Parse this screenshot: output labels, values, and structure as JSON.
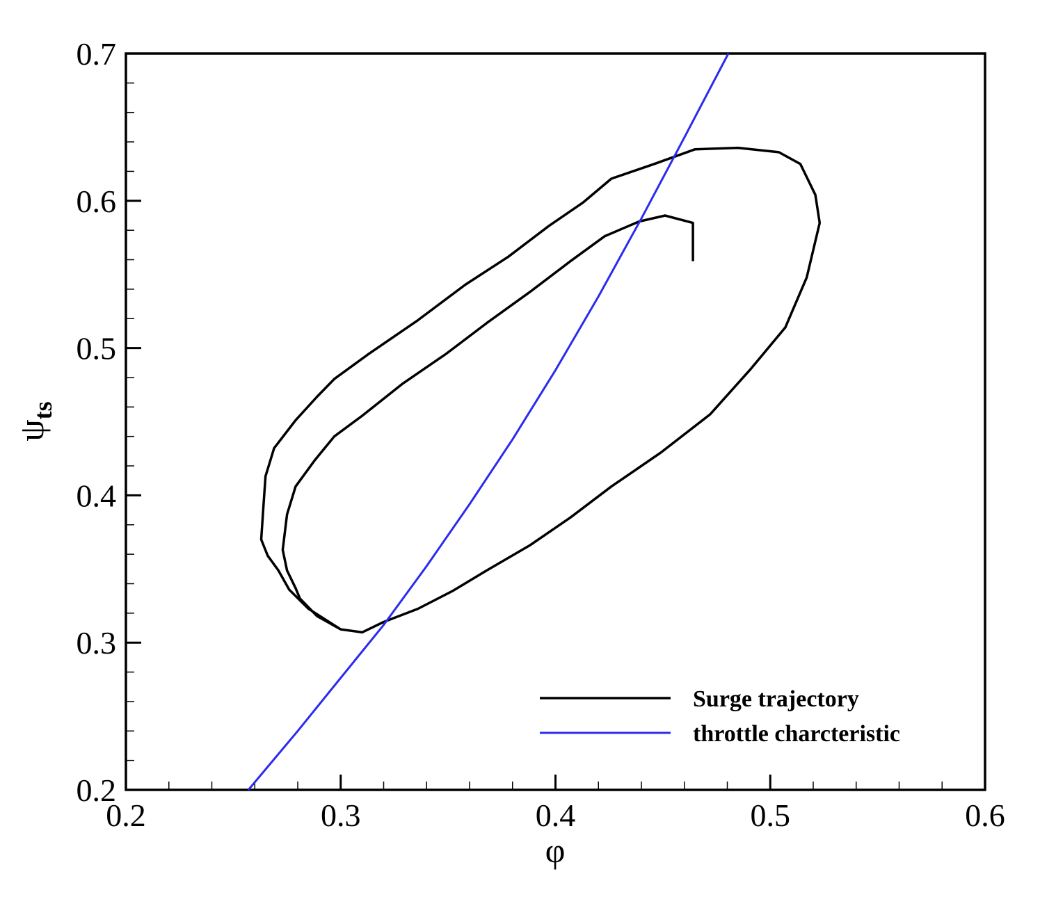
{
  "chart_data": {
    "type": "line",
    "x_label": "φ",
    "y_label": {
      "text": "ψ",
      "subscript": "ts"
    },
    "xlim": [
      0.2,
      0.6
    ],
    "ylim": [
      0.2,
      0.7
    ],
    "xticks": [
      0.2,
      0.3,
      0.4,
      0.5,
      0.6
    ],
    "yticks": [
      0.2,
      0.3,
      0.4,
      0.5,
      0.6,
      0.7
    ],
    "xminorticks": [
      0.22,
      0.24,
      0.26,
      0.28,
      0.32,
      0.34,
      0.36,
      0.38,
      0.42,
      0.44,
      0.46,
      0.48,
      0.52,
      0.54,
      0.56,
      0.58
    ],
    "yminorticks": [
      0.22,
      0.24,
      0.26,
      0.28,
      0.32,
      0.34,
      0.36,
      0.38,
      0.42,
      0.44,
      0.46,
      0.48,
      0.52,
      0.54,
      0.56,
      0.58,
      0.62,
      0.64,
      0.66,
      0.68
    ],
    "legend": "lower right",
    "series": [
      {
        "name": "Surge trajectory",
        "color": "#000000",
        "x": [
          0.464,
          0.464,
          0.451,
          0.439,
          0.423,
          0.407,
          0.388,
          0.368,
          0.349,
          0.329,
          0.31,
          0.297,
          0.288,
          0.279,
          0.275,
          0.273,
          0.275,
          0.279,
          0.281,
          0.289,
          0.3,
          0.31,
          0.32,
          0.336,
          0.352,
          0.368,
          0.388,
          0.407,
          0.426,
          0.449,
          0.472,
          0.491,
          0.507,
          0.517,
          0.523,
          0.521,
          0.514,
          0.504,
          0.485,
          0.465,
          0.446,
          0.426,
          0.413,
          0.397,
          0.378,
          0.358,
          0.336,
          0.313,
          0.297,
          0.289,
          0.279,
          0.269,
          0.265,
          0.264,
          0.263,
          0.266,
          0.271,
          0.276,
          0.285,
          0.3
        ],
        "values": [
          0.559,
          0.585,
          0.59,
          0.586,
          0.576,
          0.559,
          0.538,
          0.517,
          0.496,
          0.476,
          0.454,
          0.44,
          0.424,
          0.406,
          0.387,
          0.363,
          0.349,
          0.337,
          0.33,
          0.318,
          0.309,
          0.307,
          0.314,
          0.323,
          0.335,
          0.349,
          0.366,
          0.385,
          0.406,
          0.429,
          0.455,
          0.486,
          0.514,
          0.548,
          0.585,
          0.604,
          0.625,
          0.633,
          0.636,
          0.635,
          0.625,
          0.615,
          0.599,
          0.583,
          0.562,
          0.543,
          0.519,
          0.496,
          0.479,
          0.467,
          0.451,
          0.432,
          0.413,
          0.392,
          0.37,
          0.359,
          0.349,
          0.336,
          0.323,
          0.309
        ]
      },
      {
        "name": "throttle charcteristic",
        "color": "#2b2bef",
        "x": [
          0.257,
          0.28,
          0.3,
          0.32,
          0.34,
          0.36,
          0.38,
          0.4,
          0.42,
          0.44,
          0.46,
          0.4805
        ],
        "values": [
          0.2,
          0.24,
          0.276,
          0.312,
          0.352,
          0.394,
          0.438,
          0.485,
          0.535,
          0.588,
          0.643,
          0.7
        ]
      }
    ]
  }
}
